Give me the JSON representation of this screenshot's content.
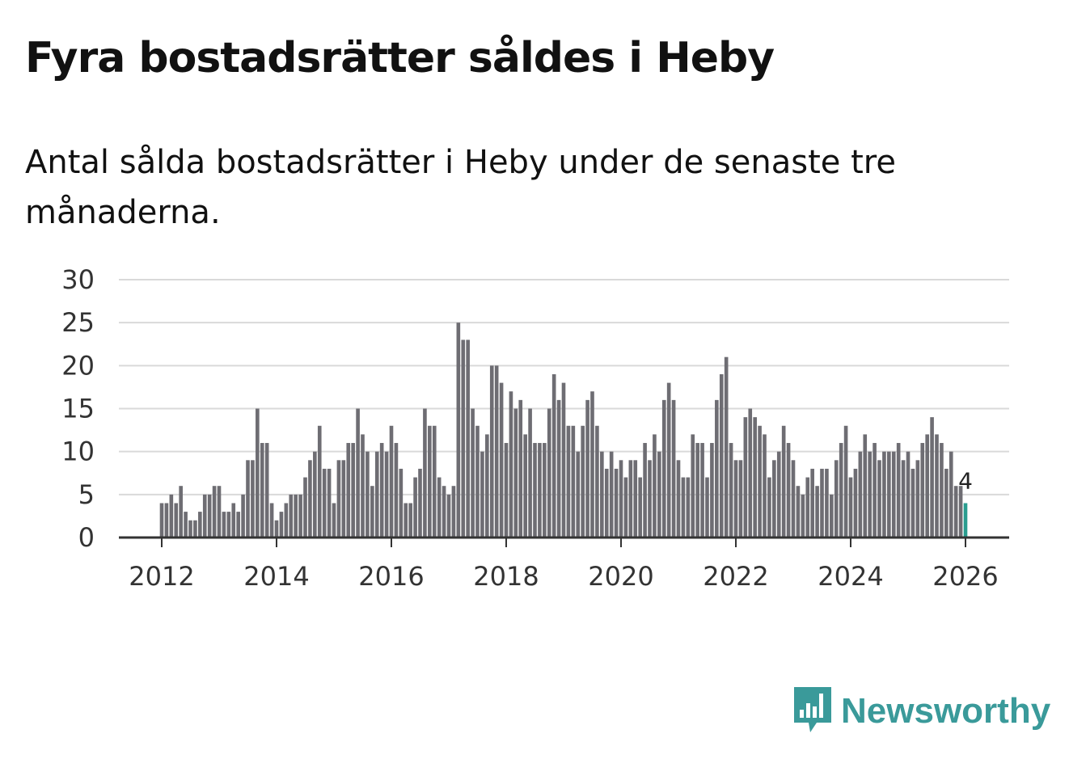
{
  "title": "Fyra bostadsrätter såldes i Heby",
  "subtitle": "Antal sålda bostadsrätter i Heby under de senaste tre månaderna.",
  "brand": {
    "name": "Newsworthy",
    "icon": "newsworthy-logo-icon",
    "color": "#3a9a9a"
  },
  "chart_data": {
    "type": "bar",
    "title": "Fyra bostadsrätter såldes i Heby",
    "subtitle": "Antal sålda bostadsrätter i Heby under de senaste tre månaderna.",
    "xlabel": "",
    "ylabel": "",
    "ylim": [
      0,
      30
    ],
    "yticks": [
      "0",
      "5",
      "10",
      "15",
      "20",
      "25",
      "30"
    ],
    "xticks": [
      "2012",
      "2014",
      "2016",
      "2018",
      "2020",
      "2022",
      "2024",
      "2026"
    ],
    "x_start": "2012-01",
    "x_end": "2025-12",
    "grid": true,
    "bar_color": "#6e6d73",
    "highlight_color": "#2a9d8f",
    "highlight_label": "4",
    "values": [
      4,
      4,
      5,
      4,
      6,
      3,
      2,
      2,
      3,
      5,
      5,
      6,
      6,
      3,
      3,
      4,
      3,
      5,
      9,
      9,
      15,
      11,
      11,
      4,
      2,
      3,
      4,
      5,
      5,
      5,
      7,
      9,
      10,
      13,
      8,
      8,
      4,
      9,
      9,
      11,
      11,
      15,
      12,
      10,
      6,
      10,
      11,
      10,
      13,
      11,
      8,
      4,
      4,
      7,
      8,
      15,
      13,
      13,
      7,
      6,
      5,
      6,
      25,
      23,
      23,
      15,
      13,
      10,
      12,
      20,
      20,
      18,
      11,
      17,
      15,
      16,
      12,
      15,
      11,
      11,
      11,
      15,
      19,
      16,
      18,
      13,
      13,
      10,
      13,
      16,
      17,
      13,
      10,
      8,
      10,
      8,
      9,
      7,
      9,
      9,
      7,
      11,
      9,
      12,
      10,
      16,
      18,
      16,
      9,
      7,
      7,
      12,
      11,
      11,
      7,
      11,
      16,
      19,
      21,
      11,
      9,
      9,
      14,
      15,
      14,
      13,
      12,
      7,
      9,
      10,
      13,
      11,
      9,
      6,
      5,
      7,
      8,
      6,
      8,
      8,
      5,
      9,
      11,
      13,
      7,
      8,
      10,
      12,
      10,
      11,
      9,
      10,
      10,
      10,
      11,
      9,
      10,
      8,
      9,
      11,
      12,
      14,
      12,
      11,
      8,
      10,
      6,
      6,
      4
    ]
  }
}
